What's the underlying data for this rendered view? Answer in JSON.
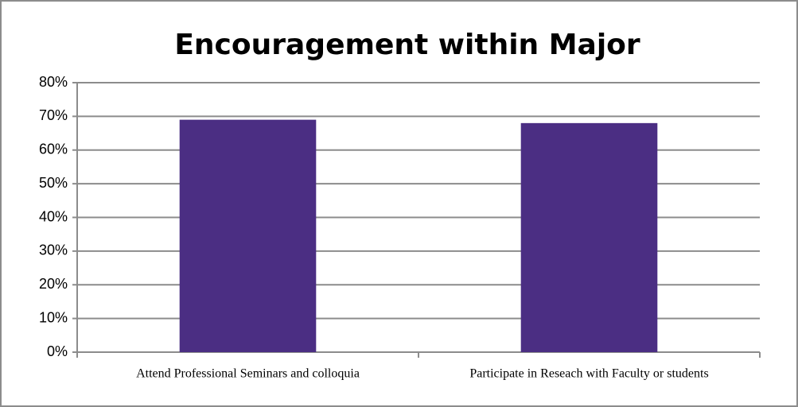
{
  "chart_data": {
    "type": "bar",
    "title": "Encouragement  within Major",
    "categories": [
      "Attend Professional Seminars and colloquia",
      "Participate in Reseach with Faculty or students"
    ],
    "values": [
      69,
      68
    ],
    "color": "#4b2e83",
    "ylim": [
      0,
      80
    ],
    "yticks": [
      {
        "value": 0,
        "label": "0%"
      },
      {
        "value": 10,
        "label": "10%"
      },
      {
        "value": 20,
        "label": "20%"
      },
      {
        "value": 30,
        "label": "30%"
      },
      {
        "value": 40,
        "label": "40%"
      },
      {
        "value": 50,
        "label": "50%"
      },
      {
        "value": 60,
        "label": "60%"
      },
      {
        "value": 70,
        "label": "70%"
      },
      {
        "value": 80,
        "label": "80%"
      }
    ],
    "grid": true
  }
}
